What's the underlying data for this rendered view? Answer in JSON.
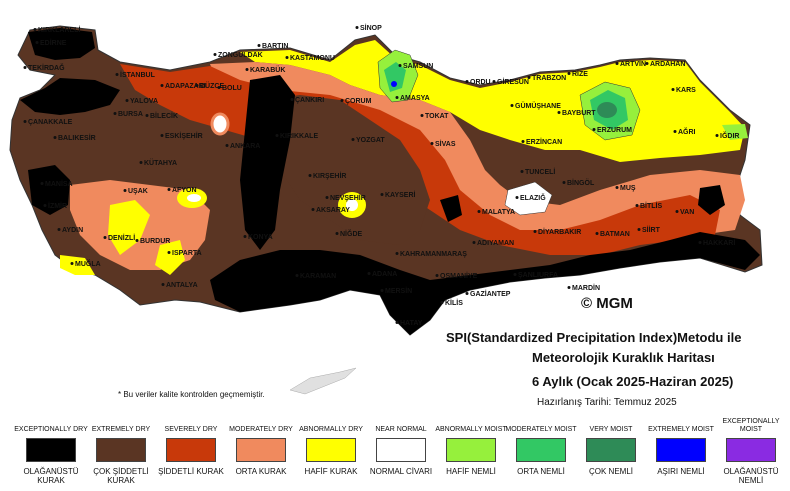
{
  "colors": {
    "exceptionally_dry": "#000000",
    "extremely_dry": "#5a3523",
    "severely_dry": "#c8390a",
    "moderately_dry": "#f08a5e",
    "abnormally_dry": "#ffff00",
    "near_normal": "#ffffff",
    "abnormally_moist": "#96f03c",
    "moderately_moist": "#32c864",
    "very_moist": "#2e8b57",
    "extremely_moist": "#0000ff",
    "exceptionally_moist": "#8a2be2"
  },
  "cities": [
    {
      "name": "SİNOP"
    },
    {
      "name": "KIRKLARELİ"
    },
    {
      "name": "EDİRNE"
    },
    {
      "name": "BARTIN"
    },
    {
      "name": "ZONGULDAK"
    },
    {
      "name": "KASTAMONU"
    },
    {
      "name": "SAMSUN"
    },
    {
      "name": "ARTVİN"
    },
    {
      "name": "ARDAHAN"
    },
    {
      "name": "TEKİRDAĞ"
    },
    {
      "name": "İSTANBUL"
    },
    {
      "name": "KARABÜK"
    },
    {
      "name": "ADAPAZARI"
    },
    {
      "name": "DÜZCE"
    },
    {
      "name": "BOLU"
    },
    {
      "name": "ORDU"
    },
    {
      "name": "GİRESUN"
    },
    {
      "name": "TRABZON"
    },
    {
      "name": "RİZE"
    },
    {
      "name": "KARS"
    },
    {
      "name": "YALOVA"
    },
    {
      "name": "BURSA"
    },
    {
      "name": "BİLECİK"
    },
    {
      "name": "ÇANKIRI"
    },
    {
      "name": "ÇORUM"
    },
    {
      "name": "AMASYA"
    },
    {
      "name": "GÜMÜŞHANE"
    },
    {
      "name": "BAYBURT"
    },
    {
      "name": "ÇANAKKALE"
    },
    {
      "name": "BALIKESİR"
    },
    {
      "name": "ESKİŞEHİR"
    },
    {
      "name": "ANKARA"
    },
    {
      "name": "KIRIKKALE"
    },
    {
      "name": "YOZGAT"
    },
    {
      "name": "TOKAT"
    },
    {
      "name": "SİVAS"
    },
    {
      "name": "ERZİNCAN"
    },
    {
      "name": "ERZURUM"
    },
    {
      "name": "AĞRI"
    },
    {
      "name": "IĞDIR"
    },
    {
      "name": "KÜTAHYA"
    },
    {
      "name": "KIRŞEHİR"
    },
    {
      "name": "TUNCELİ"
    },
    {
      "name": "BİNGÖL"
    },
    {
      "name": "MUŞ"
    },
    {
      "name": "MANİSA"
    },
    {
      "name": "UŞAK"
    },
    {
      "name": "AFYON"
    },
    {
      "name": "NEVŞEHİR"
    },
    {
      "name": "KAYSERİ"
    },
    {
      "name": "ELAZIĞ"
    },
    {
      "name": "MALATYA"
    },
    {
      "name": "BİTLİS"
    },
    {
      "name": "VAN"
    },
    {
      "name": "İZMİR"
    },
    {
      "name": "AKSARAY"
    },
    {
      "name": "NİĞDE"
    },
    {
      "name": "DİYARBAKIR"
    },
    {
      "name": "BATMAN"
    },
    {
      "name": "SİİRT"
    },
    {
      "name": "AYDIN"
    },
    {
      "name": "DENİZLİ"
    },
    {
      "name": "BURDUR"
    },
    {
      "name": "ISPARTA"
    },
    {
      "name": "KONYA"
    },
    {
      "name": "HAKKARİ"
    },
    {
      "name": "MUĞLA"
    },
    {
      "name": "ANTALYA"
    },
    {
      "name": "ADIYAMAN"
    },
    {
      "name": "ŞANLIURFA"
    },
    {
      "name": "KAHRAMANMARAŞ"
    },
    {
      "name": "ADANA"
    },
    {
      "name": "OSMANİYE"
    },
    {
      "name": "GAZİANTEP"
    },
    {
      "name": "MARDİN"
    },
    {
      "name": "KARAMAN"
    },
    {
      "name": "MERSİN"
    },
    {
      "name": "HATAY"
    },
    {
      "name": "KİLİS"
    }
  ],
  "watermark": "© MGM",
  "title": {
    "line1": "SPI(Standardized Precipitation Index)Metodu ile",
    "line2": "Meteorolojik Kuraklık Haritası",
    "line3": "6 Aylık (Ocak 2025-Haziran 2025)",
    "line4": "Hazırlanış Tarihi: Temmuz 2025"
  },
  "note": "* Bu veriler kalite kontrolden geçmemiştir.",
  "legend": [
    {
      "en": "EXCEPTIONALLY DRY",
      "tr": "OLAĞANÜSTÜ KURAK",
      "color": "#000000"
    },
    {
      "en": "EXTREMELY DRY",
      "tr": "ÇOK ŞİDDETLİ KURAK",
      "color": "#5a3523"
    },
    {
      "en": "SEVERELY DRY",
      "tr": "ŞİDDETLİ KURAK",
      "color": "#c8390a"
    },
    {
      "en": "MODERATELY DRY",
      "tr": "ORTA KURAK",
      "color": "#f08a5e"
    },
    {
      "en": "ABNORMALLY DRY",
      "tr": "HAFİF KURAK",
      "color": "#ffff00"
    },
    {
      "en": "NEAR NORMAL",
      "tr": "NORMAL CİVARI",
      "color": "#ffffff"
    },
    {
      "en": "ABNORMALLY MOIST",
      "tr": "HAFİF NEMLİ",
      "color": "#96f03c"
    },
    {
      "en": "MODERATELY MOIST",
      "tr": "ORTA NEMLİ",
      "color": "#32c864"
    },
    {
      "en": "VERY MOIST",
      "tr": "ÇOK NEMLİ",
      "color": "#2e8b57"
    },
    {
      "en": "EXTREMELY MOIST",
      "tr": "AŞIRI NEMLİ",
      "color": "#0000ff"
    },
    {
      "en": "EXCEPTIONALLY MOIST",
      "tr": "OLAĞANÜSTÜ NEMLİ",
      "color": "#8a2be2"
    }
  ]
}
